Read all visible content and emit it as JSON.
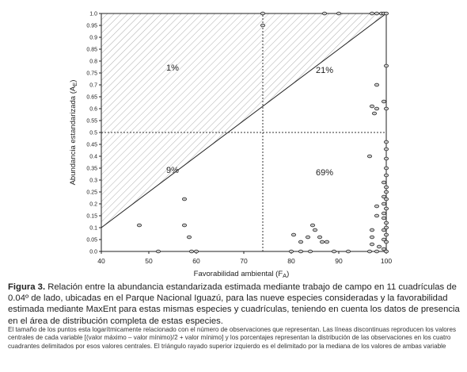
{
  "chart_data": {
    "type": "scatter",
    "xlabel": "Favorabilidad ambiental (F",
    "xlabel_sub": "A",
    "xlabel_end": ")",
    "ylabel": "Abundancia estandarizada (A",
    "ylabel_sub": "E",
    "ylabel_end": ")",
    "xlim": [
      40,
      100
    ],
    "ylim": [
      0,
      1
    ],
    "xticks": [
      "40",
      "50",
      "60",
      "70",
      "80",
      "90",
      "100"
    ],
    "yticks": [
      "0.0",
      "0.05",
      "0.1",
      "0.15",
      "0.2",
      "0.25",
      "0.3",
      "0.35",
      "0.4",
      "0.45",
      "0.5",
      "0.55",
      "0.6",
      "0.65",
      "0.7",
      "0.75",
      "0.8",
      "0.85",
      "0.9",
      "0.95",
      "1.0"
    ],
    "reference_lines": {
      "x": 74,
      "y": 0.5
    },
    "hatched_triangle": [
      [
        40,
        0.1
      ],
      [
        40,
        1.0
      ],
      [
        100,
        1.0
      ]
    ],
    "quadrant_labels": [
      {
        "text": "1%",
        "x": 55,
        "y": 0.76
      },
      {
        "text": "21%",
        "x": 87,
        "y": 0.75
      },
      {
        "text": "9%",
        "x": 55,
        "y": 0.33
      },
      {
        "text": "69%",
        "x": 87,
        "y": 0.32
      }
    ],
    "points": [
      [
        74,
        1.0
      ],
      [
        74,
        0.95
      ],
      [
        87,
        1.0
      ],
      [
        90,
        1.0
      ],
      [
        97,
        1.0
      ],
      [
        98,
        1.0
      ],
      [
        99,
        1.0
      ],
      [
        99.5,
        1.0
      ],
      [
        100,
        1.0
      ],
      [
        100,
        0.78
      ],
      [
        98,
        0.7
      ],
      [
        99.5,
        0.63
      ],
      [
        97,
        0.61
      ],
      [
        98,
        0.6
      ],
      [
        100,
        0.6
      ],
      [
        97.5,
        0.58
      ],
      [
        100,
        0.46
      ],
      [
        100,
        0.43
      ],
      [
        96.5,
        0.4
      ],
      [
        100,
        0.39
      ],
      [
        100,
        0.35
      ],
      [
        100,
        0.32
      ],
      [
        99.5,
        0.29
      ],
      [
        100,
        0.27
      ],
      [
        100,
        0.25
      ],
      [
        99.5,
        0.23
      ],
      [
        100,
        0.22
      ],
      [
        99.5,
        0.2
      ],
      [
        98,
        0.19
      ],
      [
        100,
        0.18
      ],
      [
        99.5,
        0.16
      ],
      [
        98,
        0.15
      ],
      [
        99.5,
        0.14
      ],
      [
        100,
        0.12
      ],
      [
        100,
        0.1
      ],
      [
        97,
        0.09
      ],
      [
        99.5,
        0.09
      ],
      [
        100,
        0.07
      ],
      [
        97,
        0.06
      ],
      [
        99.5,
        0.05
      ],
      [
        100,
        0.04
      ],
      [
        97,
        0.03
      ],
      [
        98.5,
        0.02
      ],
      [
        99.5,
        0.01
      ],
      [
        100,
        0.0
      ],
      [
        96.5,
        0.0
      ],
      [
        98,
        0.0
      ],
      [
        48,
        0.11
      ],
      [
        57.5,
        0.22
      ],
      [
        57.5,
        0.11
      ],
      [
        58.5,
        0.06
      ],
      [
        52,
        0.0
      ],
      [
        59,
        0.0
      ],
      [
        60,
        0.0
      ],
      [
        80,
        0.0
      ],
      [
        82,
        0.0
      ],
      [
        84,
        0.0
      ],
      [
        82,
        0.04
      ],
      [
        83.5,
        0.06
      ],
      [
        84.5,
        0.11
      ],
      [
        85,
        0.09
      ],
      [
        86,
        0.06
      ],
      [
        86.5,
        0.04
      ],
      [
        87.5,
        0.04
      ],
      [
        89,
        0.0
      ],
      [
        80.5,
        0.07
      ],
      [
        92,
        0.0
      ]
    ]
  },
  "caption": {
    "label": "Figura 3.",
    "text": " Relación entre la abundancia estandarizada estimada mediante trabajo de campo en 11 cuadrículas de 0.04º de lado, ubicadas en el Parque Nacional Iguazú, para las nueve especies consideradas y la favorabilidad estimada mediante MaxEnt para estas mismas especies y cuadrículas, teniendo en cuenta los datos de presencia en el área de distribución completa de estas especies.",
    "note": "El tamaño de los puntos esta logarítmicamente relacionado con el número de observaciones que representan. Las líneas discontinuas reproducen los valores centrales de cada variable [(valor máximo – valor mínimo)/2 + valor mínimo] y los porcentajes representan la distribución de las observaciones en los cuatro cuadrantes delimitados por esos valores centrales. El triángulo rayado superior izquierdo es el delimitado por la mediana de los valores de ambas variable"
  }
}
